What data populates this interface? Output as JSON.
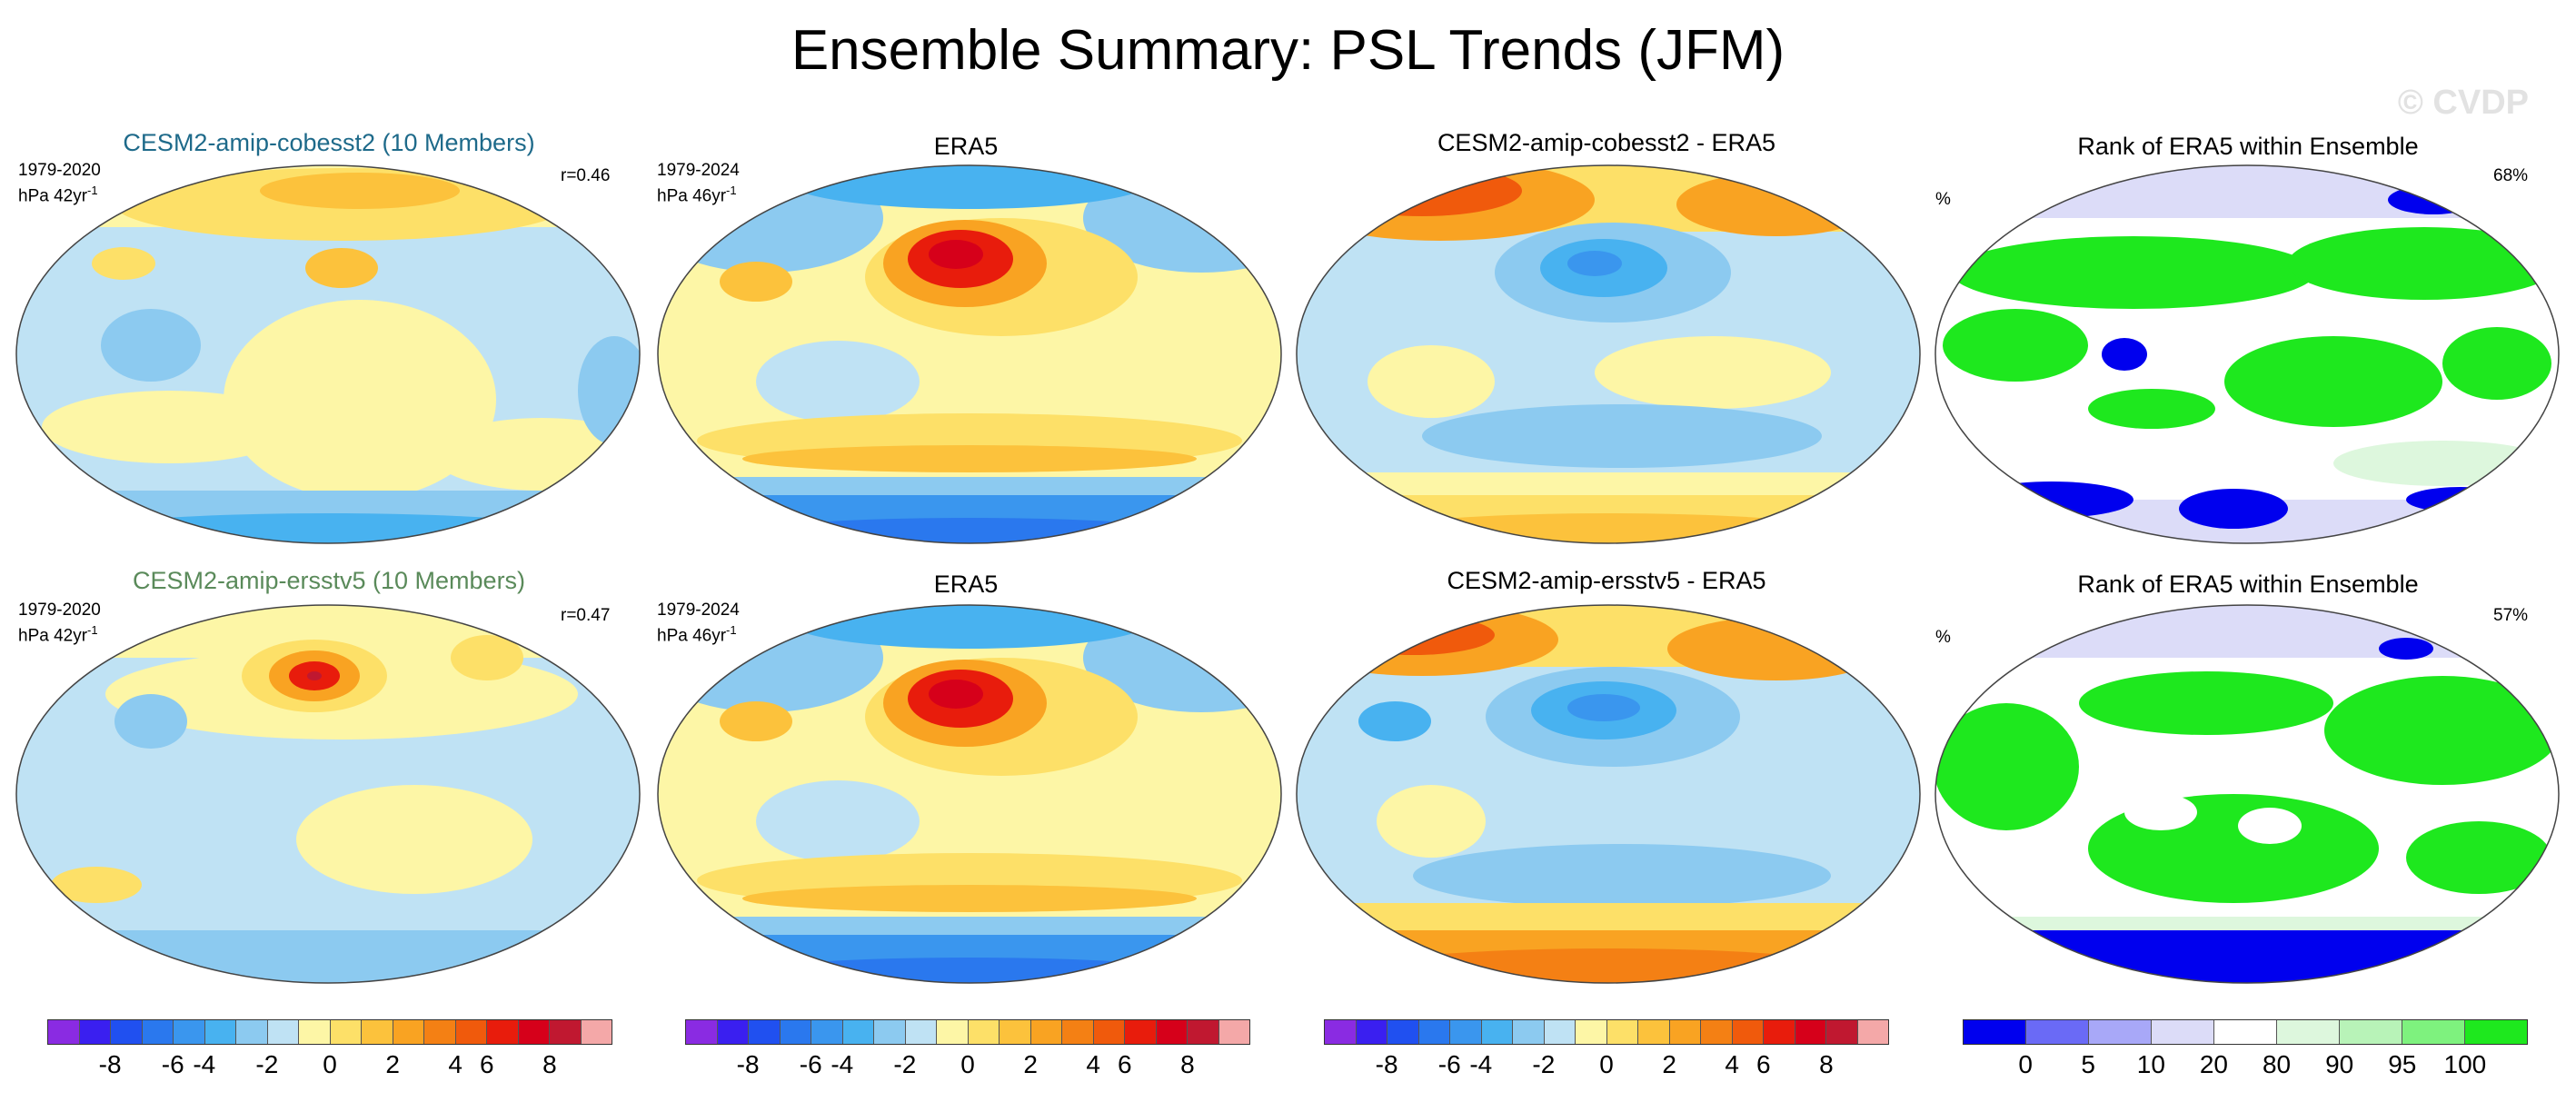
{
  "title": "Ensemble Summary: PSL Trends (JFM)",
  "watermark": "© CVDP",
  "rows": [
    {
      "model_title": "CESM2-amip-cobesst2 (10 Members)",
      "model_title_color": "#1e6a8a",
      "model_period": "1979-2020",
      "model_units": "hPa 42yr",
      "model_corr": "r=0.46",
      "obs_title": "ERA5",
      "obs_period": "1979-2024",
      "obs_units": "hPa 46yr",
      "diff_title": "CESM2-amip-cobesst2 - ERA5",
      "rank_title": "Rank of ERA5 within Ensemble",
      "rank_unit": "%",
      "rank_pct": "68%"
    },
    {
      "model_title": "CESM2-amip-ersstv5 (10 Members)",
      "model_title_color": "#5a8a5a",
      "model_period": "1979-2020",
      "model_units": "hPa 42yr",
      "model_corr": "r=0.47",
      "obs_title": "ERA5",
      "obs_period": "1979-2024",
      "obs_units": "hPa 46yr",
      "diff_title": "CESM2-amip-ersstv5 - ERA5",
      "rank_title": "Rank of ERA5 within Ensemble",
      "rank_unit": "%",
      "rank_pct": "57%"
    }
  ],
  "units_superscript": "-1",
  "psl_colorbar": {
    "colors": [
      "#8a2be2",
      "#3a1ff0",
      "#2050f0",
      "#2a78ee",
      "#3a96ee",
      "#48b2f0",
      "#8ccaf0",
      "#bfe2f4",
      "#fdf6a6",
      "#fde068",
      "#fcc23c",
      "#f9a322",
      "#f48014",
      "#f05a0c",
      "#e81c0c",
      "#d6001a",
      "#c01830",
      "#f4a8a8"
    ],
    "labels": [
      "-8",
      "-6",
      "-4",
      "-2",
      "0",
      "2",
      "4",
      "6",
      "8"
    ]
  },
  "rank_colorbar": {
    "colors": [
      "#0000ee",
      "#6a6af6",
      "#a8a8f8",
      "#dcdcf8",
      "#ffffff",
      "#ddf7dd",
      "#b8f3b8",
      "#7ef27e",
      "#1ee81e"
    ],
    "labels": [
      "0",
      "5",
      "10",
      "20",
      "80",
      "90",
      "95",
      "100"
    ]
  }
}
